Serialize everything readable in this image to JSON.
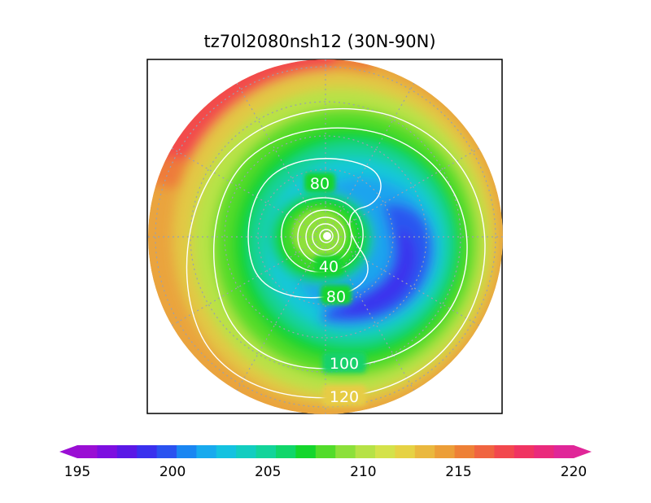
{
  "chart_data": {
    "type": "heatmap",
    "title": "tz70l2080nsh12 (30N-90N)",
    "projection": "north-polar-stereographic",
    "latitude_range": [
      30,
      90
    ],
    "grid": true,
    "colorbar": {
      "placement": "bottom",
      "extend": "both",
      "min": 195,
      "max": 220,
      "step": 1,
      "tick_labels": [
        "195",
        "200",
        "205",
        "210",
        "215",
        "220"
      ],
      "colors": [
        "#9a0ed4",
        "#7d0ee0",
        "#5a18e6",
        "#3a30ee",
        "#2a52f0",
        "#1a86f2",
        "#18aaee",
        "#14c2e0",
        "#12cdc0",
        "#12d49a",
        "#10d66a",
        "#14d62c",
        "#52dc2a",
        "#8ce03a",
        "#b6e246",
        "#d4e24a",
        "#e6d244",
        "#eab83e",
        "#ec9e38",
        "#ee8036",
        "#f06440",
        "#f2484e",
        "#f03462",
        "#ea2a7c",
        "#e02698"
      ]
    },
    "contour_labels": [
      "80",
      "40",
      "80",
      "100",
      "120"
    ]
  }
}
